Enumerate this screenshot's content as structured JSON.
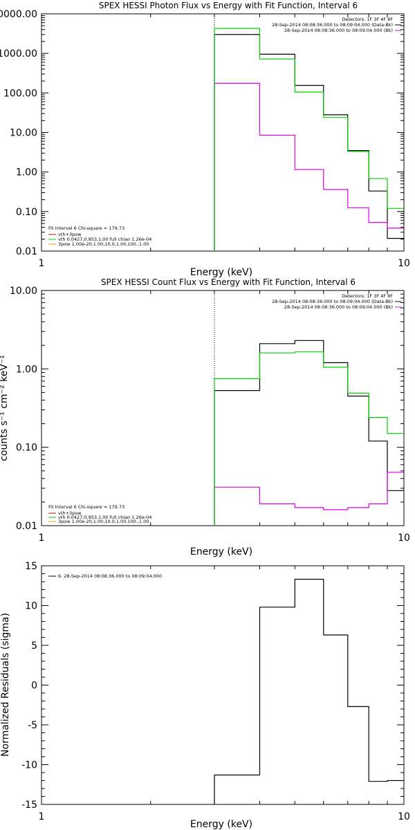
{
  "colors": {
    "background": "#ffffff",
    "black": "#000000",
    "magenta": "#e000e0",
    "green": "#00d000",
    "yellow": "#e0a000",
    "red": "#d00000"
  },
  "chart_data": [
    {
      "type": "line",
      "title": "SPEX HESSI Photon Flux vs Energy with Fit Function, Interval 6",
      "xlabel": "Energy (keV)",
      "ylabel": "",
      "xscale": "log",
      "yscale": "log",
      "xlim": [
        1,
        10
      ],
      "ylim": [
        0.01,
        10000
      ],
      "xtick_labels": [
        {
          "value": 1,
          "label": "1"
        },
        {
          "value": 10,
          "label": "10"
        }
      ],
      "ytick_labels": [
        {
          "value": 0.01,
          "label": "0.01"
        },
        {
          "value": 0.1,
          "label": "0.10"
        },
        {
          "value": 1,
          "label": "1.00"
        },
        {
          "value": 10,
          "label": "10.00"
        },
        {
          "value": 100,
          "label": "100.00"
        },
        {
          "value": 1000,
          "label": "1000.00"
        },
        {
          "value": 10000,
          "label": "10000.00"
        }
      ],
      "marker_line_x": 3,
      "edges": [
        3,
        4,
        5,
        6,
        7,
        8,
        9,
        10
      ],
      "series": [
        {
          "color": "#000000",
          "values": [
            3000,
            950,
            155,
            28,
            3.5,
            0.33,
            0.021
          ]
        },
        {
          "color": "#e000e0",
          "values": [
            175,
            8.5,
            1.15,
            0.36,
            0.125,
            0.053,
            0.038
          ]
        },
        {
          "color": "#00d000",
          "values": [
            4300,
            720,
            105,
            24,
            3.3,
            0.68,
            0.12
          ]
        }
      ],
      "info": {
        "lines": [
          "Detectors: 1F 3F 4F 8F",
          "28-Sep-2014 08:08:36.000 to 08:09:04.000 (Data-Bk)",
          "28-Sep-2014 08:08:36.000 to 08:09:04.000 (Bk)"
        ],
        "line_colors": [
          "#000000",
          "#000000",
          "#e000e0"
        ]
      },
      "legend": {
        "header": "Fit Interval  6    Chi-square = 179.73",
        "entries": [
          {
            "label": "vth+3pow",
            "color": "#d00000"
          },
          {
            "label": "vth 0.0427,0.953,1.00   full chian 1.26e-04",
            "color": "#00d000"
          },
          {
            "label": "3pow 1.00e-20,1.00,10.0,1.00,100.,1.00",
            "color": "#e0a000"
          }
        ]
      }
    },
    {
      "type": "line",
      "title": "SPEX HESSI Count Flux vs Energy with Fit Function, Interval 6",
      "xlabel": "Energy (keV)",
      "ylabel": "counts s⁻¹ cm⁻² keV⁻¹",
      "xscale": "log",
      "yscale": "log",
      "xlim": [
        1,
        10
      ],
      "ylim": [
        0.01,
        10
      ],
      "xtick_labels": [
        {
          "value": 1,
          "label": "1"
        },
        {
          "value": 10,
          "label": "10"
        }
      ],
      "ytick_labels": [
        {
          "value": 0.01,
          "label": "0.01"
        },
        {
          "value": 0.1,
          "label": "0.10"
        },
        {
          "value": 1,
          "label": "1.00"
        },
        {
          "value": 10,
          "label": "10.00"
        }
      ],
      "marker_line_x": 3,
      "edges": [
        3,
        4,
        5,
        6,
        7,
        8,
        9,
        10
      ],
      "series": [
        {
          "color": "#000000",
          "values": [
            0.53,
            2.1,
            2.3,
            1.2,
            0.45,
            0.12,
            0.028
          ]
        },
        {
          "color": "#e000e0",
          "values": [
            0.031,
            0.019,
            0.017,
            0.016,
            0.017,
            0.019,
            0.048
          ]
        },
        {
          "color": "#00d000",
          "values": [
            0.75,
            1.6,
            1.65,
            1.05,
            0.49,
            0.24,
            0.15
          ]
        }
      ],
      "info": {
        "lines": [
          "Detectors: 1F 3F 4F 8F",
          "28-Sep-2014 08:08:36.000 to 08:09:04.000 (Data-Bk)",
          "28-Sep-2014 08:08:36.000 to 08:09:04.000 (Bk)"
        ],
        "line_colors": [
          "#000000",
          "#000000",
          "#e000e0"
        ]
      },
      "legend": {
        "header": "Fit Interval  6    Chi-square = 179.73",
        "entries": [
          {
            "label": "vth+3pow",
            "color": "#d00000"
          },
          {
            "label": "vth 0.0427,0.953,1.00   full chian 1.26e-04",
            "color": "#00d000"
          },
          {
            "label": "3pow 1.00e-20,1.00,10.0,1.00,100.,1.00",
            "color": "#e0a000"
          }
        ]
      }
    },
    {
      "type": "line",
      "title": "",
      "xlabel": "Energy (keV)",
      "ylabel": "Normalized Residuals (sigma)",
      "xscale": "log",
      "yscale": "linear",
      "xlim": [
        1,
        10
      ],
      "ylim": [
        -15,
        15
      ],
      "xtick_labels": [
        {
          "value": 1,
          "label": "1"
        },
        {
          "value": 10,
          "label": "10"
        }
      ],
      "ytick_labels": [
        {
          "value": -15,
          "label": "-15"
        },
        {
          "value": -10,
          "label": "-10"
        },
        {
          "value": -5,
          "label": "-5"
        },
        {
          "value": 0,
          "label": "0"
        },
        {
          "value": 5,
          "label": "5"
        },
        {
          "value": 10,
          "label": "10"
        },
        {
          "value": 15,
          "label": "15"
        }
      ],
      "edges": [
        3,
        4,
        5,
        6,
        7,
        8,
        9,
        10
      ],
      "series": [
        {
          "color": "#000000",
          "values": [
            -11.3,
            9.8,
            13.3,
            6.3,
            -2.7,
            -12.1,
            -12.0
          ]
        }
      ],
      "legend": {
        "header": "",
        "entries": [
          {
            "label": "6. 28-Sep-2014 08:08:36.000 to 08:09:04.000",
            "color": "#000000"
          }
        ]
      }
    }
  ]
}
